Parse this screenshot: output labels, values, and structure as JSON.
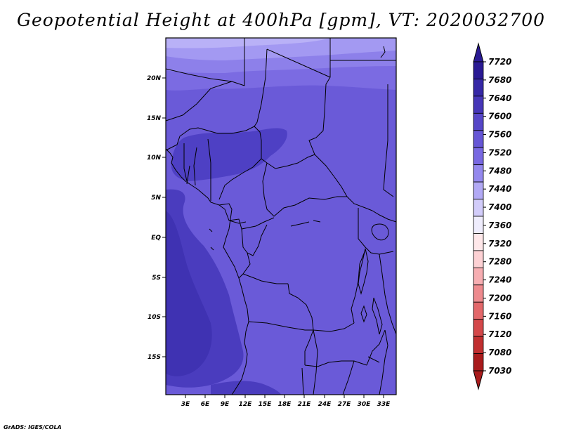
{
  "title": "Geopotential Height at 400hPa [gpm], VT: 2020032700",
  "credit": "GrADS: IGES/COLA",
  "colors": {
    "band_7680_7720": "#3a2fa8",
    "band_7640": "#4a3fc0",
    "band_7600": "#5a4ecf",
    "band_7560": "#7060dc",
    "band_7520": "#9488f0",
    "band_7480": "#afa6f6"
  },
  "axes": {
    "lat_labels": [
      "20N",
      "15N",
      "10N",
      "5N",
      "EQ",
      "5S",
      "10S",
      "15S"
    ],
    "lon_labels": [
      "3E",
      "6E",
      "9E",
      "12E",
      "15E",
      "18E",
      "21E",
      "24E",
      "27E",
      "30E",
      "33E"
    ]
  },
  "colorbar": {
    "labels": [
      "7720",
      "7680",
      "7640",
      "7600",
      "7560",
      "7520",
      "7480",
      "7440",
      "7400",
      "7360",
      "7320",
      "7280",
      "7240",
      "7200",
      "7160",
      "7120",
      "7080",
      "7030"
    ],
    "colors": [
      "#2a1a94",
      "#3628a6",
      "#4636b8",
      "#5646c8",
      "#6656d6",
      "#7868e2",
      "#9488ee",
      "#b2a9f5",
      "#d2ccfa",
      "#efedfd",
      "#ffe8ea",
      "#fdd1d4",
      "#f7aeb2",
      "#ee8a8e",
      "#e3676a",
      "#d4484a",
      "#c12f30",
      "#a91b1c"
    ]
  }
}
